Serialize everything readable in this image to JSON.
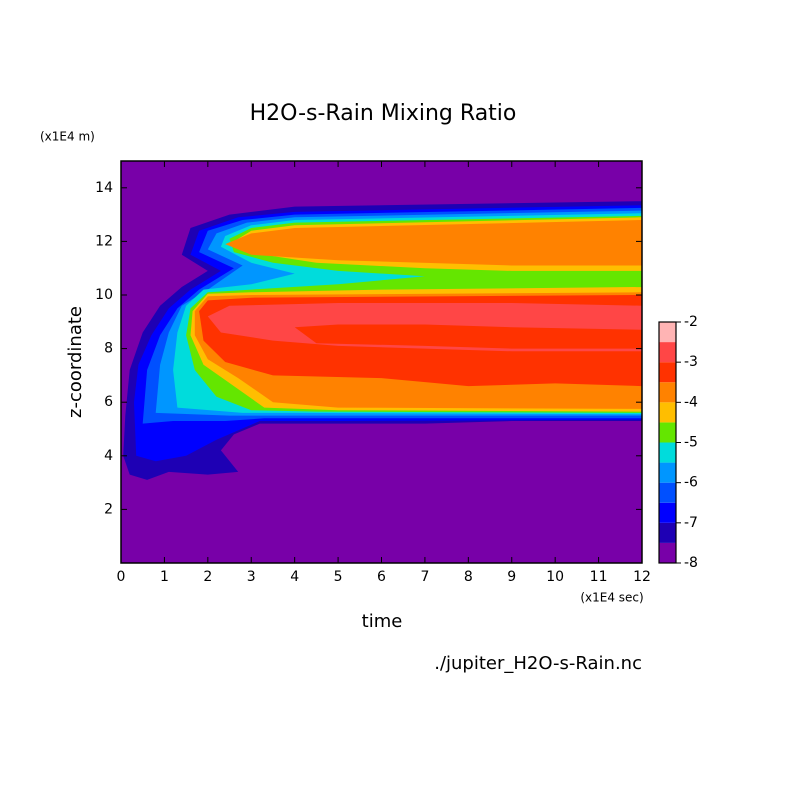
{
  "chart_data": {
    "type": "contour",
    "title": "H2O-s-Rain Mixing Ratio",
    "x_label": "time",
    "x_unit": "(x1E4 sec)",
    "y_label": "z-coordinate",
    "y_unit": "(x1E4 m)",
    "source": "./jupiter_H2O-s-Rain.nc",
    "xlim": [
      0,
      12
    ],
    "xticks": [
      0,
      1,
      2,
      3,
      4,
      5,
      6,
      7,
      8,
      9,
      10,
      11,
      12
    ],
    "ylim": [
      0,
      15
    ],
    "yticks": [
      2,
      4,
      6,
      8,
      10,
      12,
      14
    ],
    "levels": [
      -8,
      -7.5,
      -7,
      -6.5,
      -6,
      -5.5,
      -5,
      -4.5,
      -4,
      -3.5,
      -3,
      -2.5,
      -2
    ],
    "colors": [
      "#7800a8",
      "#1e00b4",
      "#0000ff",
      "#0050ff",
      "#0096ff",
      "#00dcdc",
      "#64e600",
      "#ffbe00",
      "#ff8200",
      "#ff3200",
      "#ff4646",
      "#ffb4b4"
    ],
    "colorbar_ticks": [
      -8,
      -7,
      -6,
      -5,
      -4,
      -3,
      -2
    ]
  }
}
